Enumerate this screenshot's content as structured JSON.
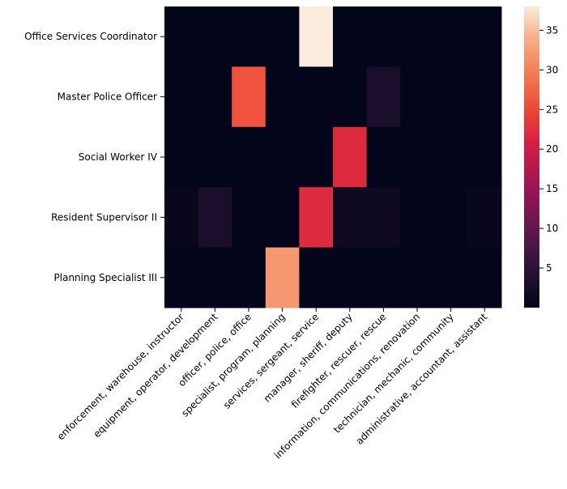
{
  "chart_data": {
    "type": "heatmap",
    "title": "",
    "xlabel": "",
    "ylabel": "",
    "rows": [
      "Office Services Coordinator",
      "Master Police Officer",
      "Social Worker IV",
      "Resident Supervisor II",
      "Planning Specialist III"
    ],
    "columns": [
      "enforcement, warehouse, instructor",
      "equipment, operator, development",
      "officer, police, office",
      "specialist, program, planning",
      "services, sergeant, service",
      "manager, sheriff, deputy",
      "firefighter, rescuer, rescue",
      "information, communications, renovation",
      "technician, mechanic, community",
      "administrative, accountant, assistant"
    ],
    "values": [
      [
        0,
        0,
        0,
        0,
        38,
        0,
        0,
        0,
        0,
        0
      ],
      [
        0,
        0,
        26,
        0,
        0,
        0,
        3,
        0,
        0,
        0
      ],
      [
        0,
        0,
        0,
        0,
        0,
        22,
        0,
        0,
        0,
        0
      ],
      [
        0.6,
        3,
        0,
        0,
        22,
        1.5,
        1.5,
        0,
        0,
        0.8
      ],
      [
        0,
        0,
        0,
        32,
        0,
        0,
        0,
        0,
        0,
        0
      ]
    ],
    "colorbar": {
      "colormap": "rocket",
      "vmin": 0,
      "vmax": 38,
      "ticks": [
        5,
        10,
        15,
        20,
        25,
        30,
        35
      ]
    }
  }
}
